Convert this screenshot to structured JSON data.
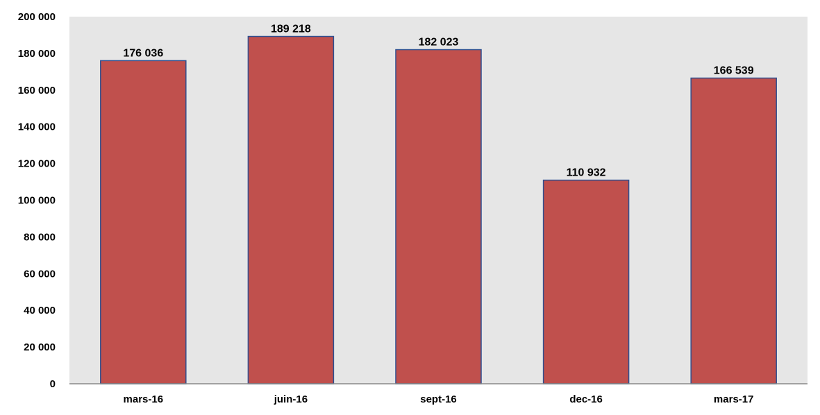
{
  "chart_data": {
    "type": "bar",
    "categories": [
      "mars-16",
      "juin-16",
      "sept-16",
      "dec-16",
      "mars-17"
    ],
    "values": [
      176036,
      189218,
      182023,
      110932,
      166539
    ],
    "value_labels": [
      "176 036",
      "189 218",
      "182 023",
      "110 932",
      "166 539"
    ],
    "title": "",
    "xlabel": "",
    "ylabel": "",
    "ylim": [
      0,
      200000
    ],
    "yticks": [
      0,
      20000,
      40000,
      60000,
      80000,
      100000,
      120000,
      140000,
      160000,
      180000,
      200000
    ],
    "ytick_labels": [
      "0",
      "20 000",
      "40 000",
      "60 000",
      "80 000",
      "100 000",
      "120 000",
      "140 000",
      "160 000",
      "180 000",
      "200 000"
    ],
    "grid": false,
    "legend": "none",
    "colors": {
      "bar_fill": "#c0504d",
      "bar_stroke": "#2f4f8f",
      "plot_background": "#e6e6e6",
      "axis_line": "#888888"
    }
  }
}
